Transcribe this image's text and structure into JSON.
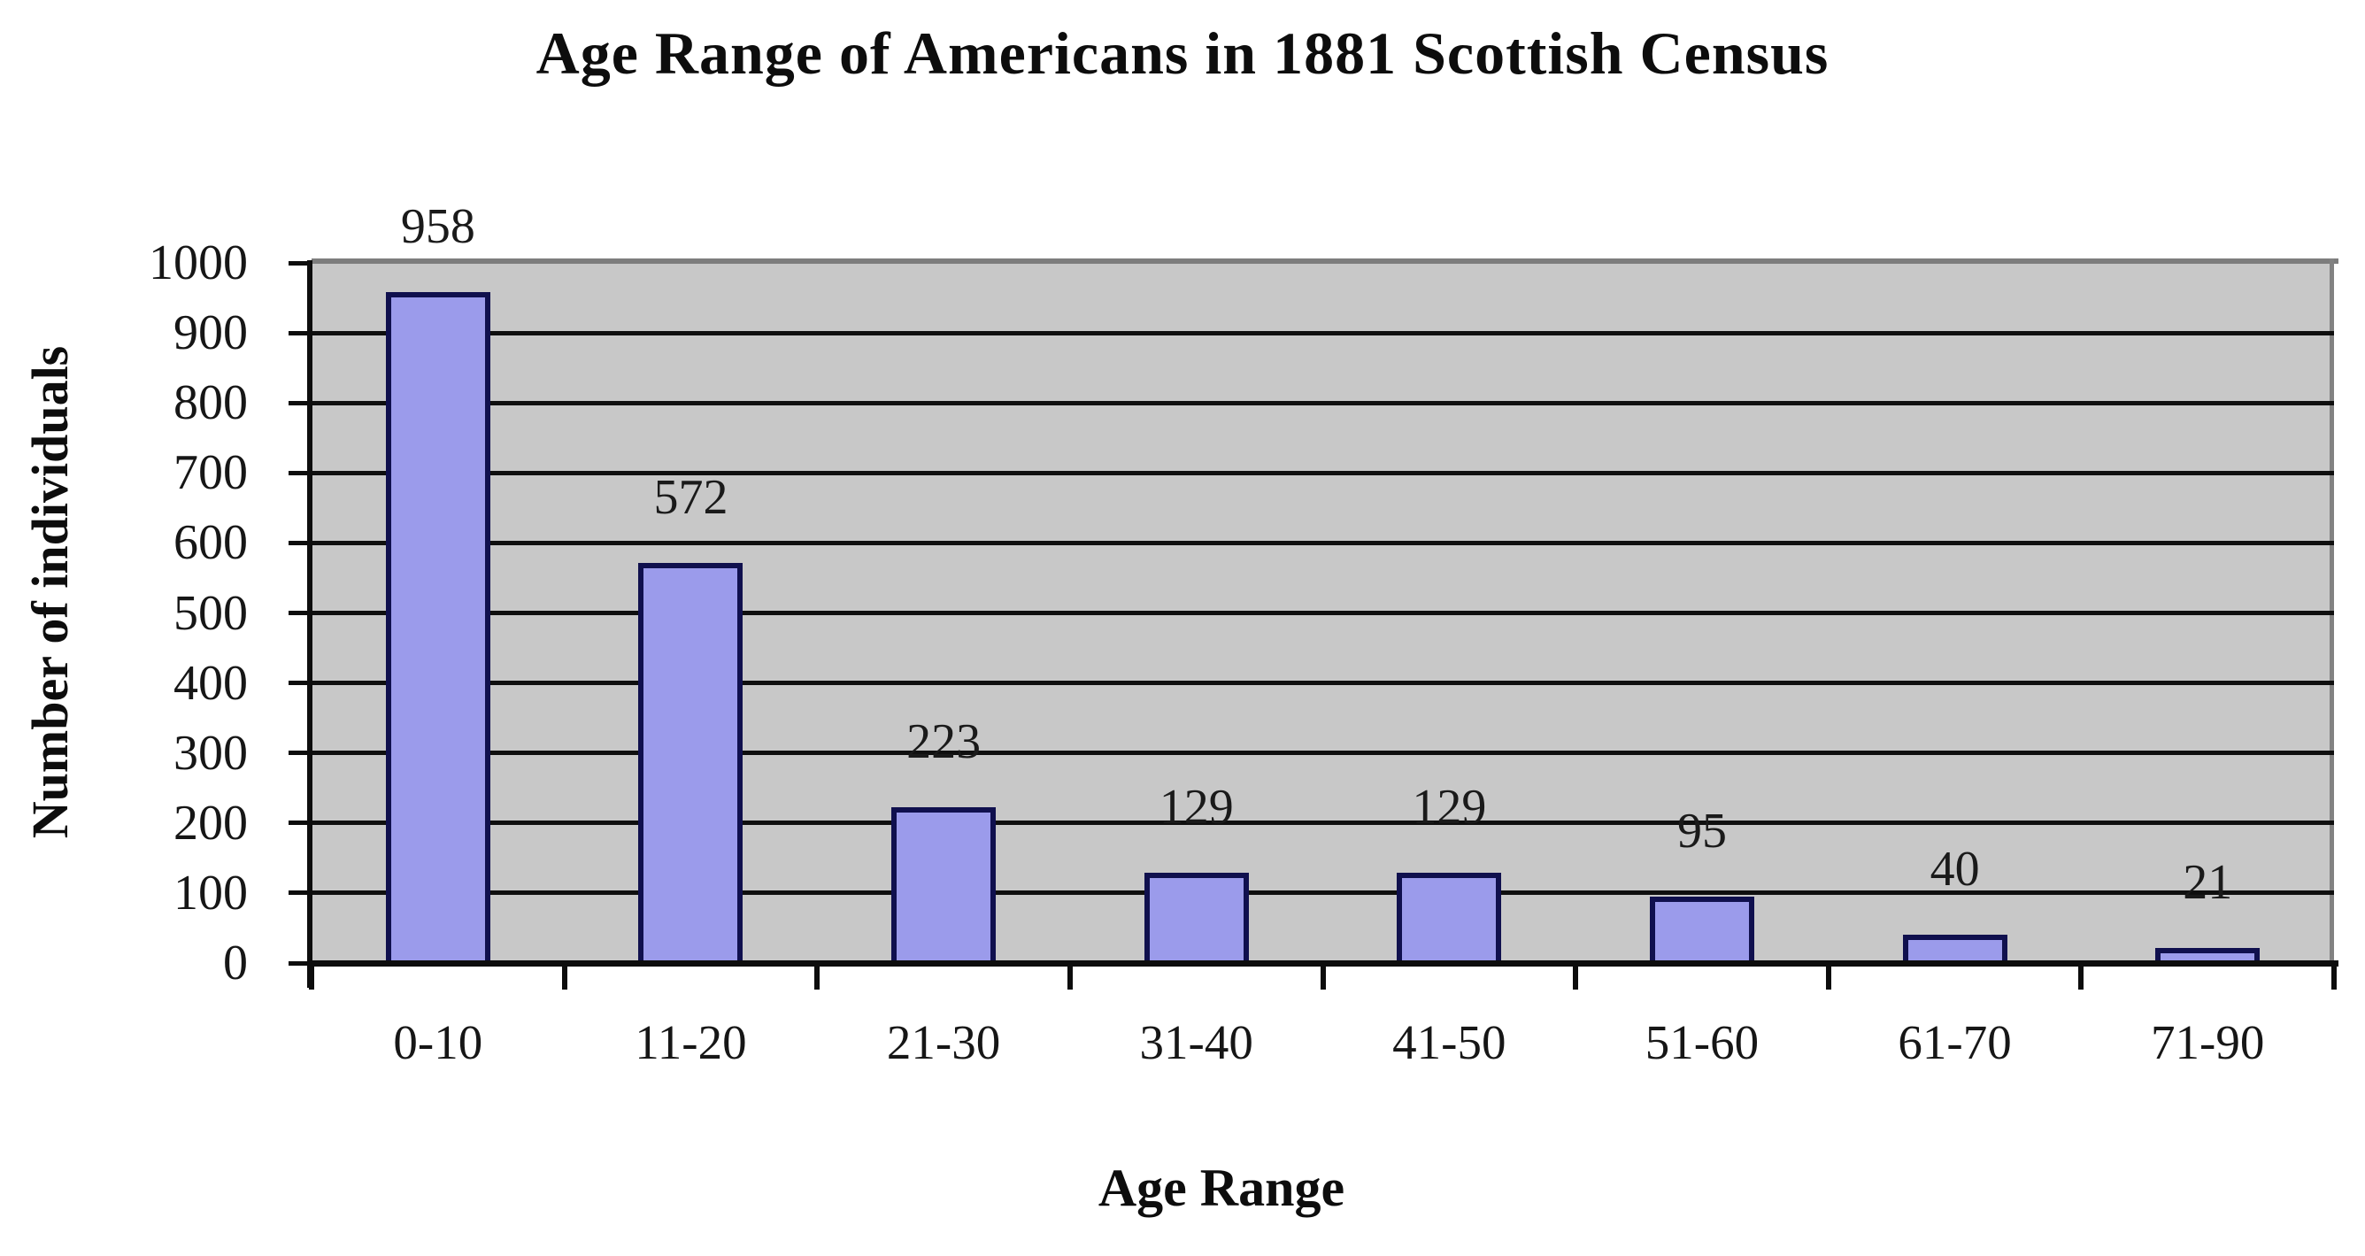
{
  "chart_data": {
    "type": "bar",
    "title": "Age Range of Americans in 1881 Scottish Census",
    "categories": [
      "0-10",
      "11-20",
      "21-30",
      "31-40",
      "41-50",
      "51-60",
      "61-70",
      "71-90"
    ],
    "values": [
      958,
      572,
      223,
      129,
      129,
      95,
      40,
      21
    ],
    "xlabel": "Age Range",
    "ylabel": "Number of individuals",
    "ylim": [
      0,
      1000
    ],
    "ytick_step": 100,
    "grid": "horizontal",
    "legend": "none",
    "colors": {
      "bar_fill": "#9b9beb",
      "bar_border": "#10104e",
      "plot_background": "#c8c8c8",
      "gridline": "#0f0f0f",
      "axis": "#0d0d0d",
      "outer_border": "#7d7d7d",
      "page_background": "#ffffff",
      "text": "#111111"
    }
  }
}
